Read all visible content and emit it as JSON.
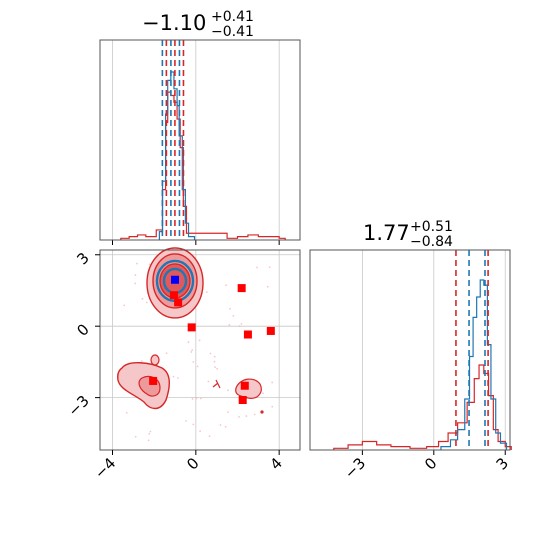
{
  "chart_data": {
    "type": "corner",
    "parameters": [
      {
        "title_value": "−1.10",
        "title_plus": "+0.41",
        "title_minus": "−0.41",
        "median": -1.1,
        "quantiles": [
          -1.51,
          -1.1,
          -0.69
        ],
        "xlim": [
          -4.6,
          5.0
        ]
      },
      {
        "title_value": "1.77",
        "title_plus": "+0.51",
        "title_minus": "−0.84",
        "median": 1.77,
        "quantiles": [
          0.93,
          1.77,
          2.28
        ],
        "xlim": [
          -5.2,
          3.2
        ]
      }
    ],
    "ticks_x": [
      {
        "value": -4,
        "label": "−4"
      },
      {
        "value": 0,
        "label": "0"
      },
      {
        "value": 4,
        "label": "4"
      }
    ],
    "ticks_y": [
      {
        "value": 3,
        "label": "3"
      },
      {
        "value": 0,
        "label": "0"
      },
      {
        "value": -3,
        "label": "−3"
      }
    ],
    "ticks_p2": [
      {
        "value": -3,
        "label": "−3"
      },
      {
        "value": 0,
        "label": "0"
      },
      {
        "value": 3,
        "label": "3"
      }
    ],
    "joint_ylim": [
      -5.2,
      3.2
    ],
    "truth_point": {
      "x": -1.0,
      "y": 1.95
    },
    "red_squares": [
      {
        "x": -1.05,
        "y": 1.3
      },
      {
        "x": -0.85,
        "y": 1.0
      },
      {
        "x": -0.2,
        "y": -0.05
      },
      {
        "x": 2.2,
        "y": 1.6
      },
      {
        "x": 2.5,
        "y": -0.35
      },
      {
        "x": 3.6,
        "y": -0.2
      },
      {
        "x": -2.05,
        "y": -2.3
      },
      {
        "x": 2.35,
        "y": -2.5
      },
      {
        "x": 2.25,
        "y": -3.1
      }
    ],
    "blue_hist_1": [
      [
        -1.75,
        0.05
      ],
      [
        -1.6,
        0.35
      ],
      [
        -1.45,
        0.75
      ],
      [
        -1.35,
        0.95
      ],
      [
        -1.2,
        1.0
      ],
      [
        -1.05,
        0.9
      ],
      [
        -0.9,
        0.8
      ],
      [
        -0.8,
        0.62
      ],
      [
        -0.65,
        0.3
      ],
      [
        -0.5,
        0.1
      ],
      [
        -0.35,
        0.02
      ]
    ],
    "red_hist_1": [
      [
        -3.6,
        0.01
      ],
      [
        -3.2,
        0.02
      ],
      [
        -2.8,
        0.03
      ],
      [
        -2.4,
        0.02
      ],
      [
        -1.9,
        0.06
      ],
      [
        -1.6,
        0.3
      ],
      [
        -1.45,
        0.7
      ],
      [
        -1.35,
        0.88
      ],
      [
        -1.2,
        0.86
      ],
      [
        -1.05,
        0.82
      ],
      [
        -0.9,
        0.72
      ],
      [
        -0.75,
        0.55
      ],
      [
        -0.6,
        0.2
      ],
      [
        -0.45,
        0.04
      ],
      [
        1.5,
        0.01
      ],
      [
        2.0,
        0.02
      ],
      [
        2.5,
        0.03
      ],
      [
        3.0,
        0.02
      ],
      [
        3.6,
        0.02
      ],
      [
        4.0,
        0.01
      ]
    ],
    "blue_hist_2": [
      [
        0.3,
        0.02
      ],
      [
        0.7,
        0.06
      ],
      [
        1.0,
        0.12
      ],
      [
        1.3,
        0.3
      ],
      [
        1.5,
        0.55
      ],
      [
        1.65,
        0.78
      ],
      [
        1.8,
        0.9
      ],
      [
        1.95,
        1.0
      ],
      [
        2.1,
        0.97
      ],
      [
        2.25,
        0.62
      ],
      [
        2.4,
        0.3
      ],
      [
        2.6,
        0.1
      ],
      [
        2.8,
        0.04
      ]
    ],
    "red_hist_2": [
      [
        -4.2,
        0.01
      ],
      [
        -3.6,
        0.03
      ],
      [
        -3.0,
        0.05
      ],
      [
        -2.4,
        0.03
      ],
      [
        -1.8,
        0.02
      ],
      [
        -1.0,
        0.01
      ],
      [
        -0.3,
        0.02
      ],
      [
        0.2,
        0.05
      ],
      [
        0.6,
        0.1
      ],
      [
        1.0,
        0.16
      ],
      [
        1.4,
        0.28
      ],
      [
        1.7,
        0.42
      ],
      [
        1.9,
        0.5
      ],
      [
        2.1,
        0.45
      ],
      [
        2.3,
        0.32
      ],
      [
        2.5,
        0.12
      ],
      [
        2.7,
        0.05
      ],
      [
        3.0,
        0.02
      ]
    ]
  },
  "colors": {
    "blue": "#1f77b4",
    "red": "#d62728",
    "red_fill": "#ee9a9b",
    "red_fill_light": "#f6c7c8",
    "truth": "#0000ff",
    "square": "#ff0000",
    "grid": "#c8c8c8"
  }
}
